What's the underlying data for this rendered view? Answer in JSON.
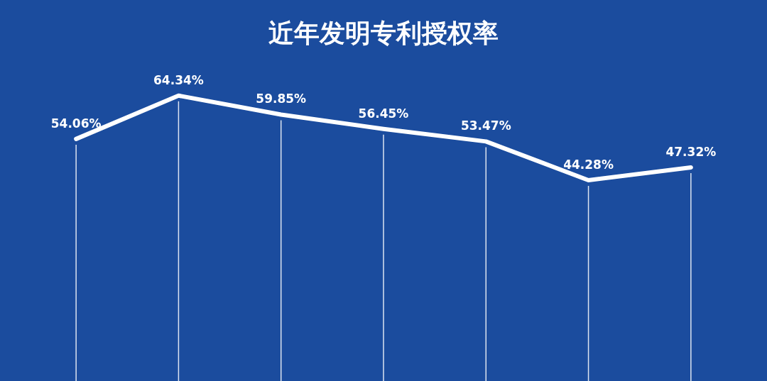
{
  "chart_data": {
    "type": "line",
    "title": "近年发明专利授权率",
    "categories": [
      null,
      null,
      null,
      null,
      null,
      null,
      null
    ],
    "series": [
      {
        "color": "#ffffff",
        "values": [
          54.06,
          64.34,
          59.85,
          56.45,
          53.47,
          44.28,
          47.32
        ],
        "value_labels": [
          "54.06%",
          "64.34%",
          "59.85%",
          "56.45%",
          "53.47%",
          "44.28%",
          "47.32%"
        ]
      }
    ],
    "tick_labels": false,
    "grid": "x",
    "legend": false,
    "marker": "none",
    "line_style": "solid"
  }
}
